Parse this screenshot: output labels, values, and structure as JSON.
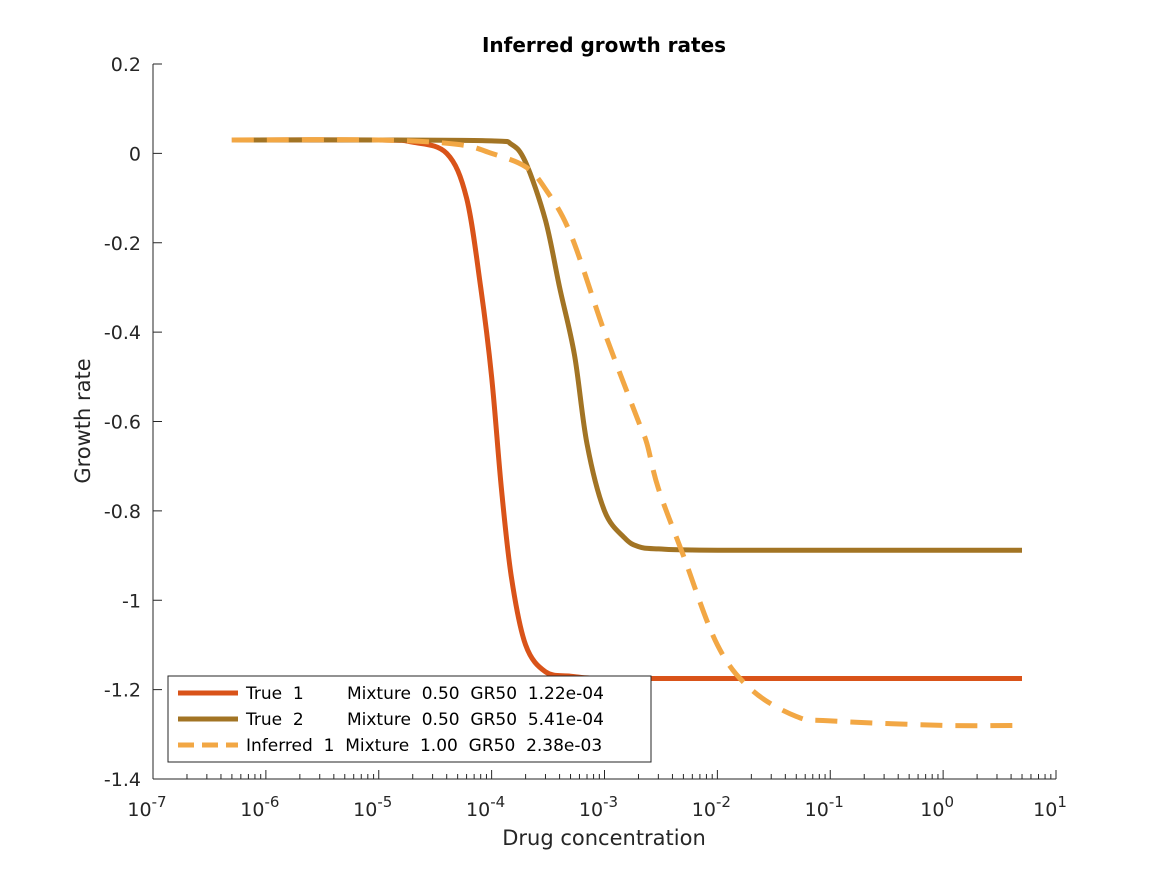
{
  "chart_data": {
    "type": "line",
    "title": "Inferred growth rates",
    "xlabel": "Drug concentration",
    "ylabel": "Growth rate",
    "xscale": "log",
    "xlim": [
      1e-07,
      10
    ],
    "ylim": [
      -1.4,
      0.2
    ],
    "x_ticks": [
      {
        "base": "10",
        "exp": "-7"
      },
      {
        "base": "10",
        "exp": "-6"
      },
      {
        "base": "10",
        "exp": "-5"
      },
      {
        "base": "10",
        "exp": "-4"
      },
      {
        "base": "10",
        "exp": "-3"
      },
      {
        "base": "10",
        "exp": "-2"
      },
      {
        "base": "10",
        "exp": "-1"
      },
      {
        "base": "10",
        "exp": "0"
      },
      {
        "base": "10",
        "exp": "1"
      }
    ],
    "y_ticks": [
      "0.2",
      "0",
      "-0.2",
      "-0.4",
      "-0.6",
      "-0.8",
      "-1",
      "-1.2",
      "-1.4"
    ],
    "grid": false,
    "legend_position": "bottom-left",
    "series": [
      {
        "name": "True  1        Mixture  0.50  GR50  1.22e-04",
        "color": "#d95319",
        "dash": "solid",
        "x": [
          5e-07,
          1e-05,
          2e-05,
          4e-05,
          6e-05,
          8e-05,
          0.0001,
          0.000122,
          0.00015,
          0.0002,
          0.0003,
          0.0005,
          0.001,
          0.01,
          1,
          5
        ],
        "y": [
          0.03,
          0.03,
          0.025,
          0.0,
          -0.1,
          -0.3,
          -0.5,
          -0.75,
          -0.95,
          -1.1,
          -1.16,
          -1.17,
          -1.175,
          -1.175,
          -1.175,
          -1.175
        ]
      },
      {
        "name": "True  2        Mixture  0.50  GR50  5.41e-04",
        "color": "#a27424",
        "dash": "solid",
        "x": [
          5e-07,
          1e-05,
          0.0001,
          0.00015,
          0.0002,
          0.0003,
          0.0004,
          0.000541,
          0.0007,
          0.001,
          0.0015,
          0.002,
          0.003,
          0.01,
          1,
          5
        ],
        "y": [
          0.03,
          0.03,
          0.028,
          0.02,
          -0.02,
          -0.15,
          -0.3,
          -0.45,
          -0.65,
          -0.8,
          -0.86,
          -0.88,
          -0.885,
          -0.888,
          -0.888,
          -0.888
        ]
      },
      {
        "name": "Inferred  1  Mixture  1.00  GR50  2.38e-03",
        "color": "#f2a744",
        "dash": "dashed",
        "x": [
          5e-07,
          1e-05,
          5e-05,
          0.0001,
          0.0002,
          0.0003,
          0.0005,
          0.001,
          0.002,
          0.00238,
          0.003,
          0.005,
          0.01,
          0.02,
          0.05,
          0.1,
          1,
          5
        ],
        "y": [
          0.03,
          0.03,
          0.02,
          0.0,
          -0.03,
          -0.08,
          -0.18,
          -0.4,
          -0.6,
          -0.65,
          -0.75,
          -0.9,
          -1.1,
          -1.2,
          -1.26,
          -1.27,
          -1.28,
          -1.28
        ]
      }
    ]
  }
}
